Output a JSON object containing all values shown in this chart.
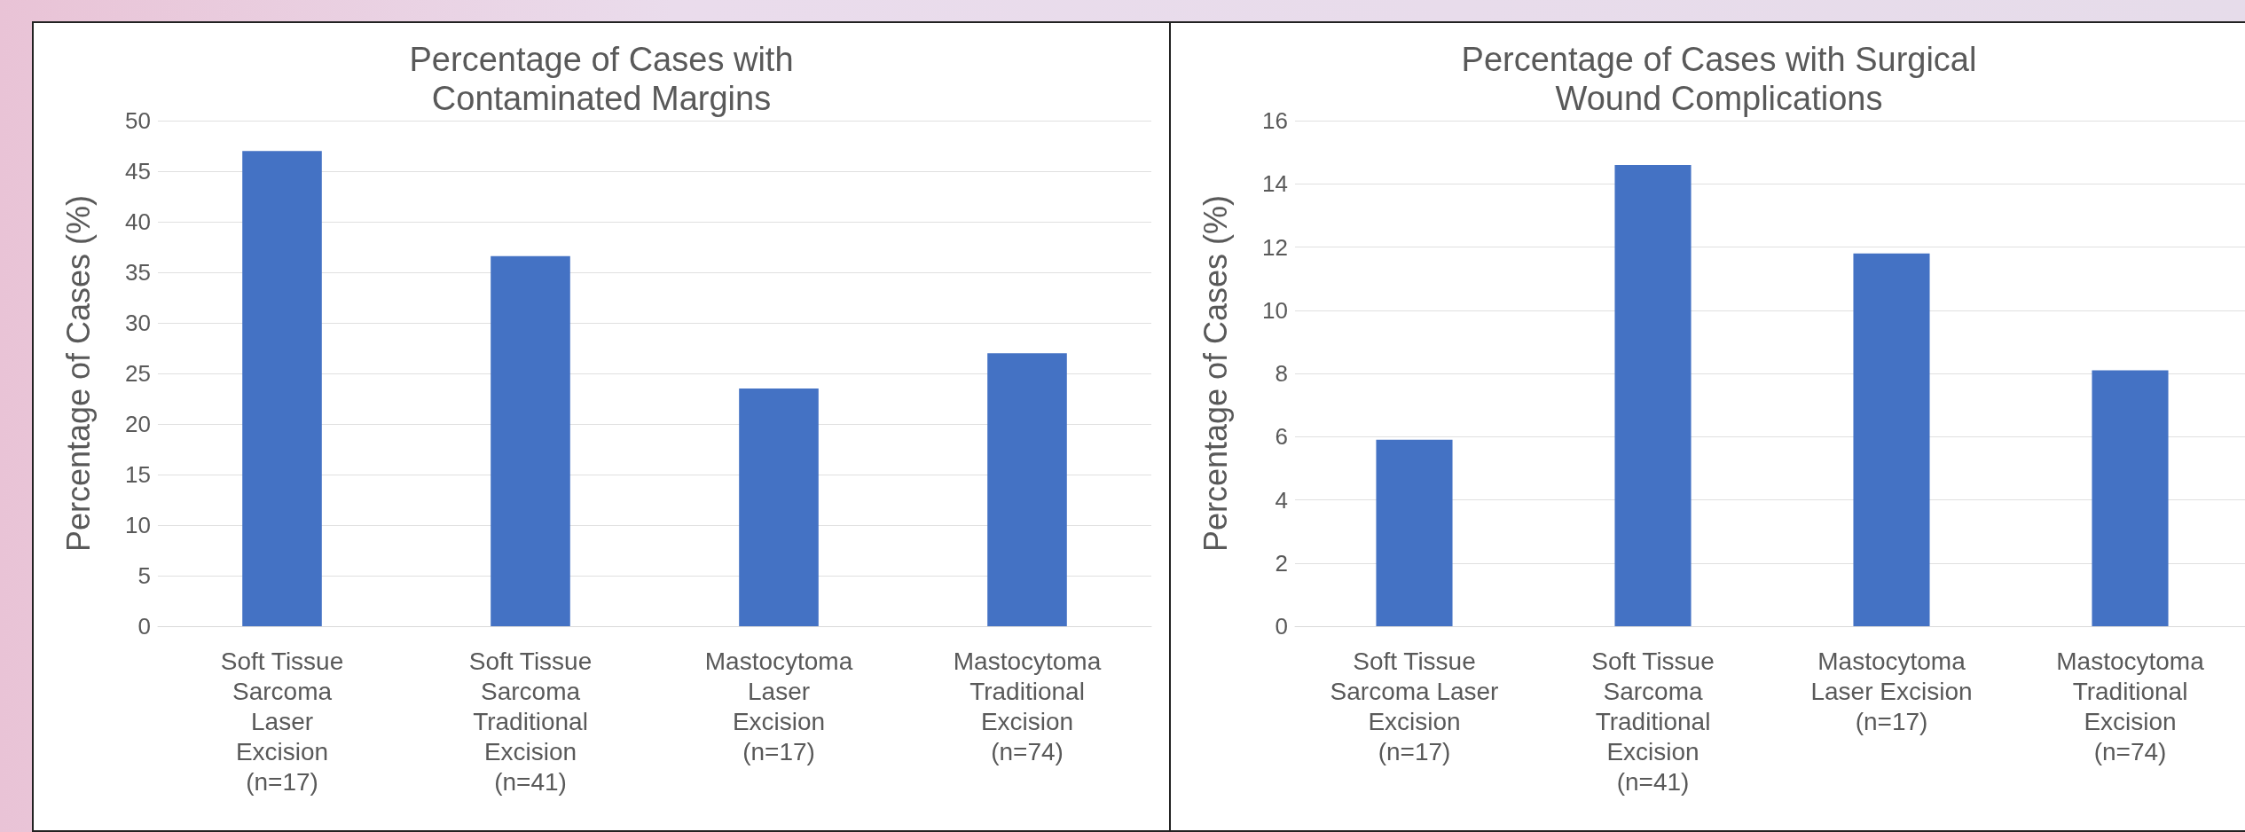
{
  "chart_data": [
    {
      "type": "bar",
      "title": "Percentage of Cases with\nContaminated Margins",
      "ylabel": "Percentage of Cases (%)",
      "categories": [
        "Soft Tissue\nSarcoma\nLaser\nExcision\n(n=17)",
        "Soft Tissue\nSarcoma\nTraditional\nExcision\n(n=41)",
        "Mastocytoma\nLaser\nExcision\n(n=17)",
        "Mastocytoma\nTraditional\nExcision\n(n=74)"
      ],
      "values": [
        47,
        36.6,
        23.5,
        27
      ],
      "color": "#4472c4",
      "ylim": [
        0,
        50
      ],
      "yticks": [
        0,
        5,
        10,
        15,
        20,
        25,
        30,
        35,
        40,
        45,
        50
      ],
      "grid": "y"
    },
    {
      "type": "bar",
      "title": "Percentage of Cases with Surgical\nWound Complications",
      "ylabel": "Percentage of Cases (%)",
      "categories": [
        "Soft Tissue\nSarcoma Laser\nExcision\n(n=17)",
        "Soft Tissue\nSarcoma\nTraditional\nExcision\n(n=41)",
        "Mastocytoma\nLaser Excision\n(n=17)",
        "Mastocytoma\nTraditional\nExcision\n(n=74)"
      ],
      "values": [
        5.9,
        14.6,
        11.8,
        8.1
      ],
      "color": "#4472c4",
      "ylim": [
        0,
        16
      ],
      "yticks": [
        0,
        2,
        4,
        6,
        8,
        10,
        12,
        14,
        16
      ],
      "grid": "y"
    }
  ]
}
